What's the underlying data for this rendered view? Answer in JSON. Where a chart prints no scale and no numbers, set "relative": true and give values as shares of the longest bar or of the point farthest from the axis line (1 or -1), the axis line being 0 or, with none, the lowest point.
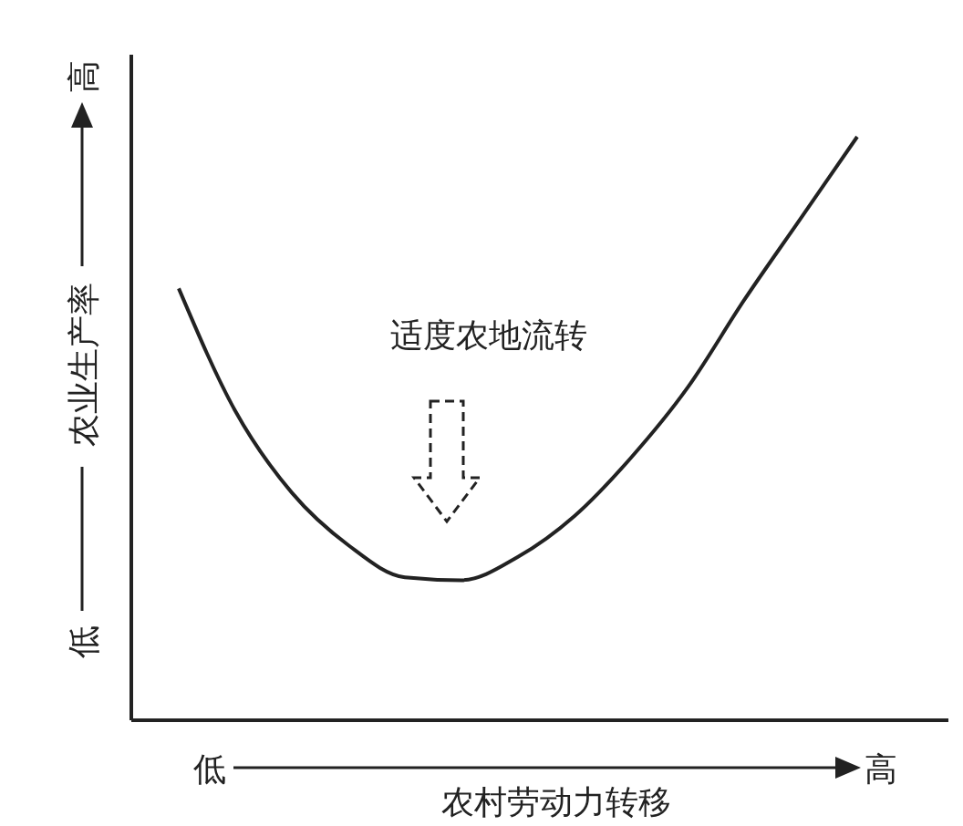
{
  "chart_data": {
    "type": "line",
    "relative": true,
    "xlabel": "农村劳动力转移",
    "ylabel": "农业生产率",
    "categories": [
      null,
      null,
      null,
      null,
      null,
      null,
      null,
      null,
      null,
      null,
      null,
      null,
      null
    ],
    "values": [
      0.74,
      0.53,
      0.39,
      0.3,
      0.245,
      0.24,
      0.28,
      0.35,
      0.45,
      0.57,
      0.72,
      0.86,
      1
    ],
    "color": "#222222",
    "annotations": [
      "适度农地流转",
      "低",
      "高",
      "低",
      "高"
    ]
  }
}
